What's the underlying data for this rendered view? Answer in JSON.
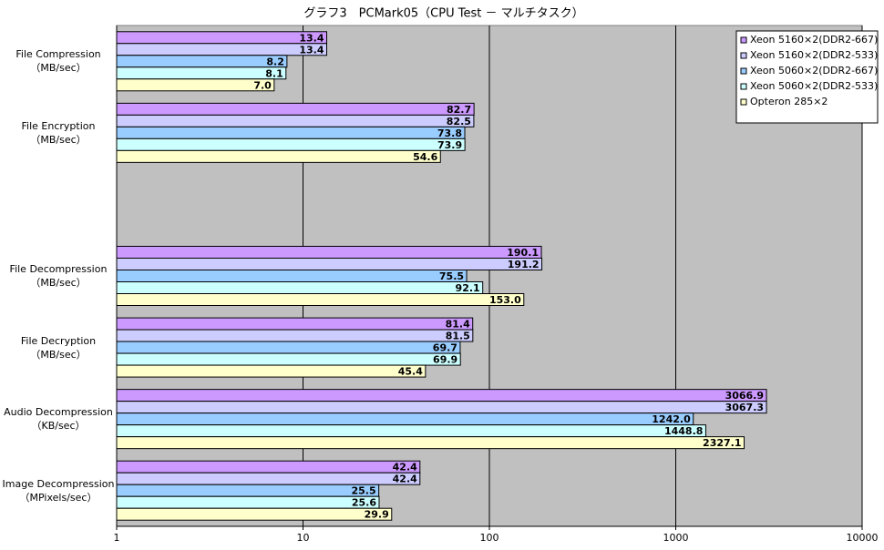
{
  "chart_data": {
    "type": "hbar",
    "title": "グラフ3　PCMark05（CPU Test － マルチタスク）",
    "categories": [
      "File Compression\n（MB/sec）",
      "File Encryption\n（MB/sec）",
      null,
      "File Decompression\n（MB/sec）",
      "File Decryption\n（MB/sec）",
      "Audio Decompression\n（KB/sec）",
      "Image Decompression\n（MPixels/sec）"
    ],
    "series": [
      {
        "name": "Xeon 5160×2(DDR2-667)",
        "color": "#cc99ff",
        "values": [
          13.4,
          82.7,
          null,
          190.1,
          81.4,
          3066.9,
          42.4
        ],
        "value_labels": [
          "13.4",
          "82.7",
          null,
          "190.1",
          "81.4",
          "3066.9",
          "42.4"
        ]
      },
      {
        "name": "Xeon 5160×2(DDR2-533)",
        "color": "#ccccff",
        "values": [
          13.4,
          82.5,
          null,
          191.2,
          81.5,
          3067.3,
          42.4
        ],
        "value_labels": [
          "13.4",
          "82.5",
          null,
          "191.2",
          "81.5",
          "3067.3",
          "42.4"
        ]
      },
      {
        "name": "Xeon 5060×2(DDR2-667)",
        "color": "#99ccff",
        "values": [
          8.2,
          73.8,
          null,
          75.5,
          69.7,
          1242.0,
          25.5
        ],
        "value_labels": [
          "8.2",
          "73.8",
          null,
          "75.5",
          "69.7",
          "1242.0",
          "25.5"
        ]
      },
      {
        "name": "Xeon 5060×2(DDR2-533)",
        "color": "#ccffff",
        "values": [
          8.1,
          73.9,
          null,
          92.1,
          69.9,
          1448.8,
          25.6
        ],
        "value_labels": [
          "8.1",
          "73.9",
          null,
          "92.1",
          "69.9",
          "1448.8",
          "25.6"
        ]
      },
      {
        "name": "Opteron 285×2",
        "color": "#ffffcc",
        "values": [
          7.0,
          54.6,
          null,
          153.0,
          45.4,
          2327.1,
          29.9
        ],
        "value_labels": [
          "7.0",
          "54.6",
          null,
          "153.0",
          "45.4",
          "2327.1",
          "29.9"
        ]
      }
    ],
    "xlim": [
      1,
      10000
    ],
    "xticks": [
      1,
      10,
      100,
      1000,
      10000
    ],
    "log_x": true,
    "grid": true,
    "legend": "top-right",
    "plot_background": "#c0c0c0"
  }
}
